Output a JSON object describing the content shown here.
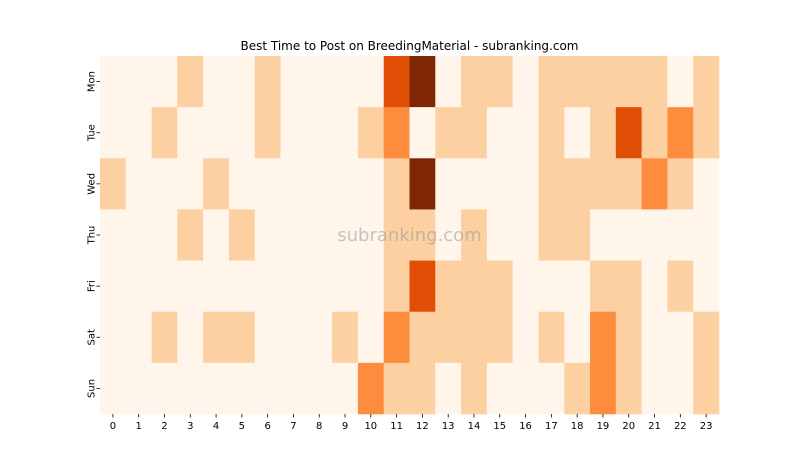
{
  "chart_data": {
    "type": "heatmap",
    "title": "Best Time to Post on BreedingMaterial - subranking.com",
    "watermark": "subranking.com",
    "xlabel": "",
    "ylabel": "",
    "x_categories": [
      "0",
      "1",
      "2",
      "3",
      "4",
      "5",
      "6",
      "7",
      "8",
      "9",
      "10",
      "11",
      "12",
      "13",
      "14",
      "15",
      "16",
      "17",
      "18",
      "19",
      "20",
      "21",
      "22",
      "23"
    ],
    "y_categories": [
      "Mon",
      "Tue",
      "Wed",
      "Thu",
      "Fri",
      "Sat",
      "Sun"
    ],
    "values": [
      [
        0,
        0,
        0,
        1,
        0,
        0,
        1,
        0,
        0,
        0,
        0,
        4,
        5,
        0,
        1,
        1,
        0,
        1,
        1,
        1,
        1,
        1,
        0,
        1
      ],
      [
        0,
        0,
        1,
        0,
        0,
        0,
        1,
        0,
        0,
        0,
        1,
        2,
        0,
        1,
        1,
        0,
        0,
        1,
        0,
        1,
        4,
        1,
        2,
        1
      ],
      [
        1,
        0,
        0,
        0,
        1,
        0,
        0,
        0,
        0,
        0,
        0,
        1,
        5,
        0,
        0,
        0,
        0,
        1,
        1,
        1,
        1,
        2,
        1,
        0
      ],
      [
        0,
        0,
        0,
        1,
        0,
        1,
        0,
        0,
        0,
        0,
        0,
        1,
        1,
        0,
        1,
        0,
        0,
        1,
        1,
        0,
        0,
        0,
        0,
        0
      ],
      [
        0,
        0,
        0,
        0,
        0,
        0,
        0,
        0,
        0,
        0,
        0,
        1,
        4,
        1,
        1,
        1,
        0,
        0,
        0,
        1,
        1,
        0,
        1,
        0
      ],
      [
        0,
        0,
        1,
        0,
        1,
        1,
        0,
        0,
        0,
        1,
        0,
        2,
        1,
        1,
        1,
        1,
        0,
        1,
        0,
        2,
        1,
        0,
        0,
        1
      ],
      [
        0,
        0,
        0,
        0,
        0,
        0,
        0,
        0,
        0,
        0,
        2,
        1,
        1,
        0,
        1,
        0,
        0,
        0,
        1,
        2,
        1,
        0,
        0,
        1
      ]
    ],
    "color_scale": [
      "#fff5eb",
      "#fdd0a2",
      "#fd8d3c",
      "#d94801",
      "#e04f05",
      "#7f2704"
    ],
    "colorbar": false,
    "grid": false
  }
}
